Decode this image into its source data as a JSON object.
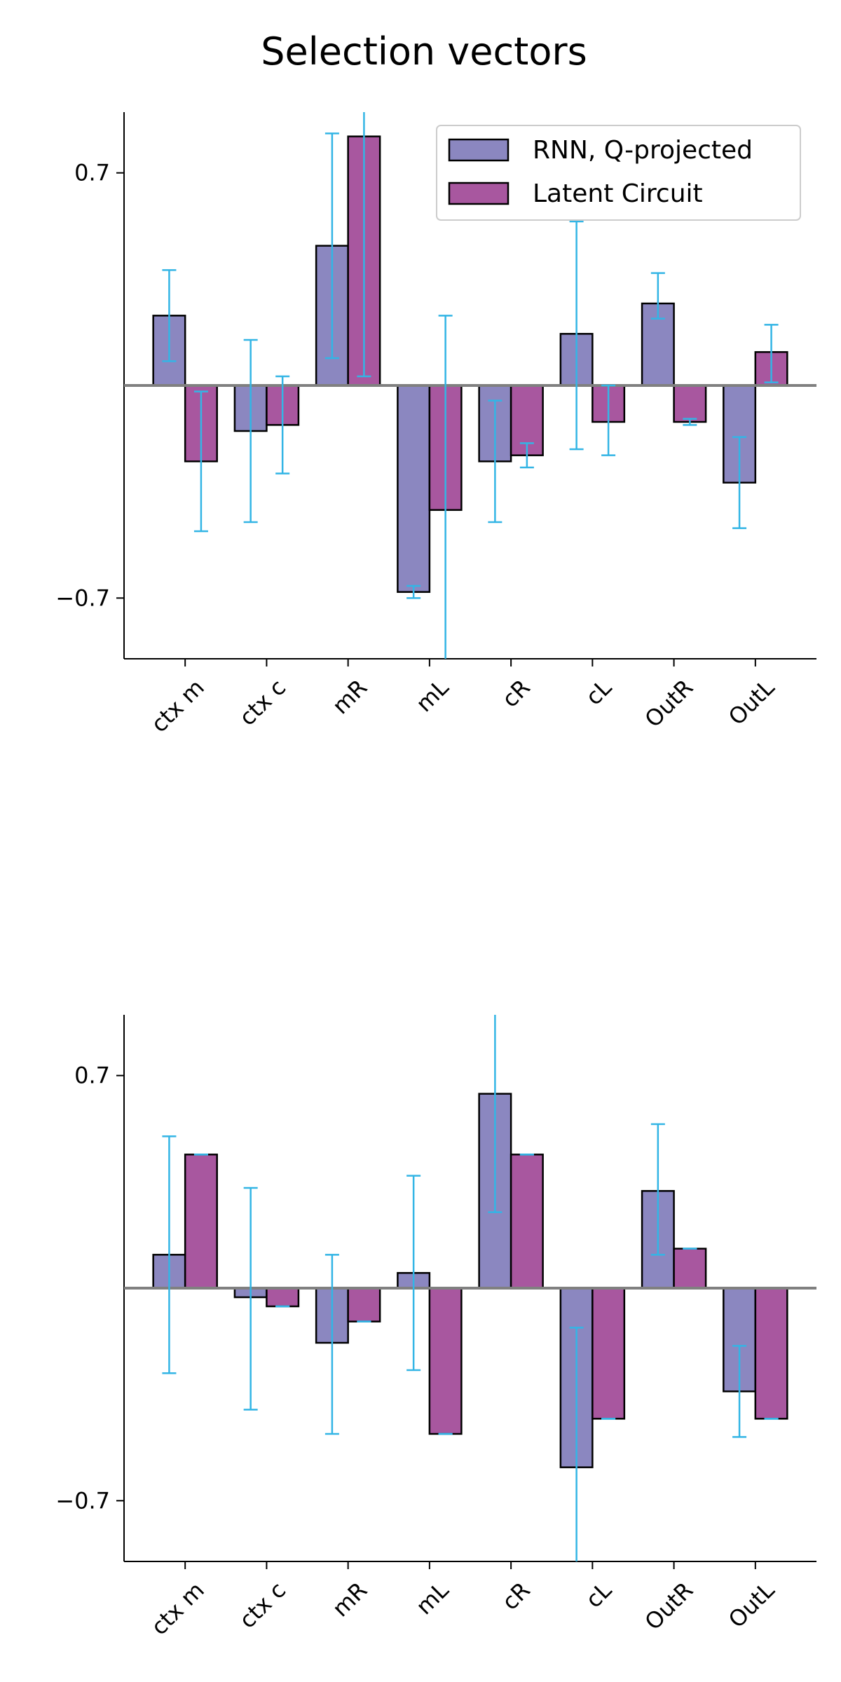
{
  "figure": {
    "title": "Selection vectors"
  },
  "colors": {
    "series_a": "#8b87c0",
    "series_b": "#a8579f",
    "error": "#33b5e5",
    "zero_line": "#808080",
    "edge": "#000000"
  },
  "legend": {
    "placement": "top-right",
    "items": [
      {
        "label": "RNN, Q-projected"
      },
      {
        "label": "Latent Circuit"
      }
    ]
  },
  "chart_data": [
    {
      "type": "bar",
      "categories": [
        "ctx m",
        "ctx c",
        "mR",
        "mL",
        "cR",
        "cL",
        "OutR",
        "OutL"
      ],
      "ylim": [
        -0.9,
        0.9
      ],
      "yticks": [
        0.7,
        -0.7
      ],
      "ytick_labels": [
        "0.7",
        "−0.7"
      ],
      "legend_shown": true,
      "series": [
        {
          "name": "RNN, Q-projected",
          "values": [
            0.23,
            -0.15,
            0.46,
            -0.68,
            -0.25,
            0.17,
            0.27,
            -0.32
          ],
          "err_low": [
            0.08,
            -0.45,
            0.09,
            -0.7,
            -0.45,
            -0.21,
            0.22,
            -0.47
          ],
          "err_high": [
            0.38,
            0.15,
            0.83,
            -0.66,
            -0.05,
            0.54,
            0.37,
            -0.17
          ]
        },
        {
          "name": "Latent Circuit",
          "values": [
            -0.25,
            -0.13,
            0.82,
            -0.41,
            -0.23,
            -0.12,
            -0.12,
            0.11
          ],
          "err_low": [
            -0.48,
            -0.29,
            0.03,
            -1.0,
            -0.27,
            -0.23,
            -0.13,
            0.01
          ],
          "err_high": [
            -0.02,
            0.03,
            1.0,
            0.23,
            -0.19,
            0.0,
            -0.11,
            0.2
          ]
        }
      ]
    },
    {
      "type": "bar",
      "categories": [
        "ctx m",
        "ctx c",
        "mR",
        "mL",
        "cR",
        "cL",
        "OutR",
        "OutL"
      ],
      "ylim": [
        -0.9,
        0.9
      ],
      "yticks": [
        0.7,
        -0.7
      ],
      "ytick_labels": [
        "0.7",
        "−0.7"
      ],
      "legend_shown": false,
      "series": [
        {
          "name": "RNN, Q-projected",
          "values": [
            0.11,
            -0.03,
            -0.18,
            0.05,
            0.64,
            -0.59,
            0.32,
            -0.34
          ],
          "err_low": [
            -0.28,
            -0.4,
            -0.48,
            -0.27,
            0.25,
            -1.0,
            0.11,
            -0.49
          ],
          "err_high": [
            0.5,
            0.33,
            0.11,
            0.37,
            1.0,
            -0.13,
            0.54,
            -0.19
          ]
        },
        {
          "name": "Latent Circuit",
          "values": [
            0.44,
            -0.06,
            -0.11,
            -0.48,
            0.44,
            -0.43,
            0.13,
            -0.43
          ],
          "err_low": [
            0.44,
            -0.06,
            -0.11,
            -0.48,
            0.44,
            -0.43,
            0.13,
            -0.43
          ],
          "err_high": [
            0.44,
            -0.06,
            -0.11,
            -0.48,
            0.44,
            -0.43,
            0.13,
            -0.43
          ]
        }
      ]
    }
  ]
}
